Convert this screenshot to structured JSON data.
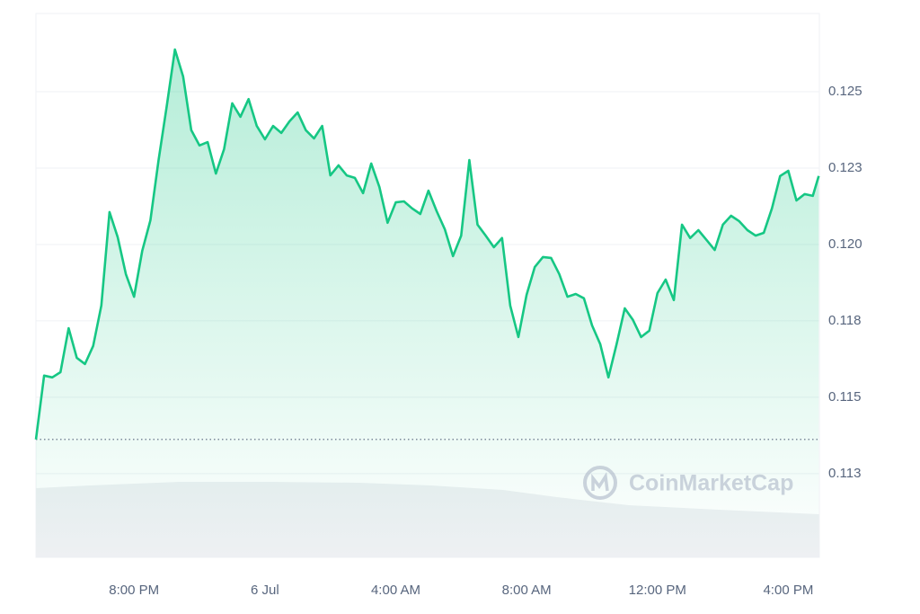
{
  "chart_data": {
    "type": "line",
    "color": "#16c784",
    "grid": true,
    "watermark": "CoinMarketCap",
    "baseline": 0.11362,
    "xlim": [
      17,
      40.95
    ],
    "xticks": [
      {
        "value": 20,
        "label": "8:00 PM"
      },
      {
        "value": 24,
        "label": "6 Jul"
      },
      {
        "value": 28,
        "label": "4:00 AM"
      },
      {
        "value": 32,
        "label": "8:00 AM"
      },
      {
        "value": 36,
        "label": "12:00 PM"
      },
      {
        "value": 40,
        "label": "4:00 PM"
      }
    ],
    "ylim": [
      0.10976,
      0.12756
    ],
    "yticks": [
      {
        "value": 0.1125,
        "label": "0.113"
      },
      {
        "value": 0.115,
        "label": "0.115"
      },
      {
        "value": 0.1175,
        "label": "0.118"
      },
      {
        "value": 0.12,
        "label": "0.120"
      },
      {
        "value": 0.1225,
        "label": "0.123"
      },
      {
        "value": 0.125,
        "label": "0.125"
      }
    ],
    "x": [
      17,
      17.25,
      17.5,
      17.75,
      18,
      18.25,
      18.5,
      18.75,
      19,
      19.25,
      19.5,
      19.75,
      20,
      20.25,
      20.5,
      20.75,
      21,
      21.25,
      21.5,
      21.75,
      22,
      22.25,
      22.5,
      22.75,
      23,
      23.25,
      23.5,
      23.75,
      24,
      24.25,
      24.5,
      24.75,
      25,
      25.25,
      25.5,
      25.75,
      26,
      26.25,
      26.5,
      26.75,
      27,
      27.25,
      27.5,
      27.75,
      28,
      28.25,
      28.5,
      28.75,
      29,
      29.25,
      29.5,
      29.75,
      30,
      30.25,
      30.5,
      30.75,
      31,
      31.25,
      31.5,
      31.75,
      32,
      32.25,
      32.5,
      32.75,
      33,
      33.25,
      33.5,
      33.75,
      34,
      34.25,
      34.5,
      34.75,
      35,
      35.25,
      35.5,
      35.75,
      36,
      36.25,
      36.5,
      36.75,
      37,
      37.25,
      37.5,
      37.75,
      38,
      38.25,
      38.5,
      38.75,
      39,
      39.25,
      39.5,
      39.75,
      40,
      40.25,
      40.5,
      40.75,
      40.93
    ],
    "values": [
      0.11362,
      0.11571,
      0.11565,
      0.11582,
      0.11726,
      0.11629,
      0.11609,
      0.11668,
      0.118,
      0.12106,
      0.12024,
      0.11903,
      0.11829,
      0.11979,
      0.12079,
      0.12276,
      0.12453,
      0.12638,
      0.1255,
      0.12374,
      0.12324,
      0.12335,
      0.12232,
      0.12312,
      0.12462,
      0.12418,
      0.12476,
      0.12388,
      0.12344,
      0.12388,
      0.12365,
      0.12403,
      0.12432,
      0.12374,
      0.12347,
      0.12388,
      0.12226,
      0.12259,
      0.12226,
      0.12218,
      0.12168,
      0.12265,
      0.12188,
      0.12071,
      0.12138,
      0.12141,
      0.12118,
      0.121,
      0.12176,
      0.12109,
      0.1205,
      0.11962,
      0.12029,
      0.12276,
      0.12065,
      0.12029,
      0.11991,
      0.12021,
      0.118,
      0.11697,
      0.11835,
      0.11926,
      0.11959,
      0.11956,
      0.11903,
      0.11829,
      0.11838,
      0.11824,
      0.11735,
      0.11674,
      0.11565,
      0.11674,
      0.11791,
      0.11753,
      0.11697,
      0.11718,
      0.11841,
      0.11885,
      0.11818,
      0.12065,
      0.12021,
      0.12047,
      0.12015,
      0.11982,
      0.12065,
      0.12094,
      0.12076,
      0.12047,
      0.12029,
      0.12038,
      0.12118,
      0.12224,
      0.12241,
      0.12144,
      0.12165,
      0.12159,
      0.12224
    ]
  }
}
